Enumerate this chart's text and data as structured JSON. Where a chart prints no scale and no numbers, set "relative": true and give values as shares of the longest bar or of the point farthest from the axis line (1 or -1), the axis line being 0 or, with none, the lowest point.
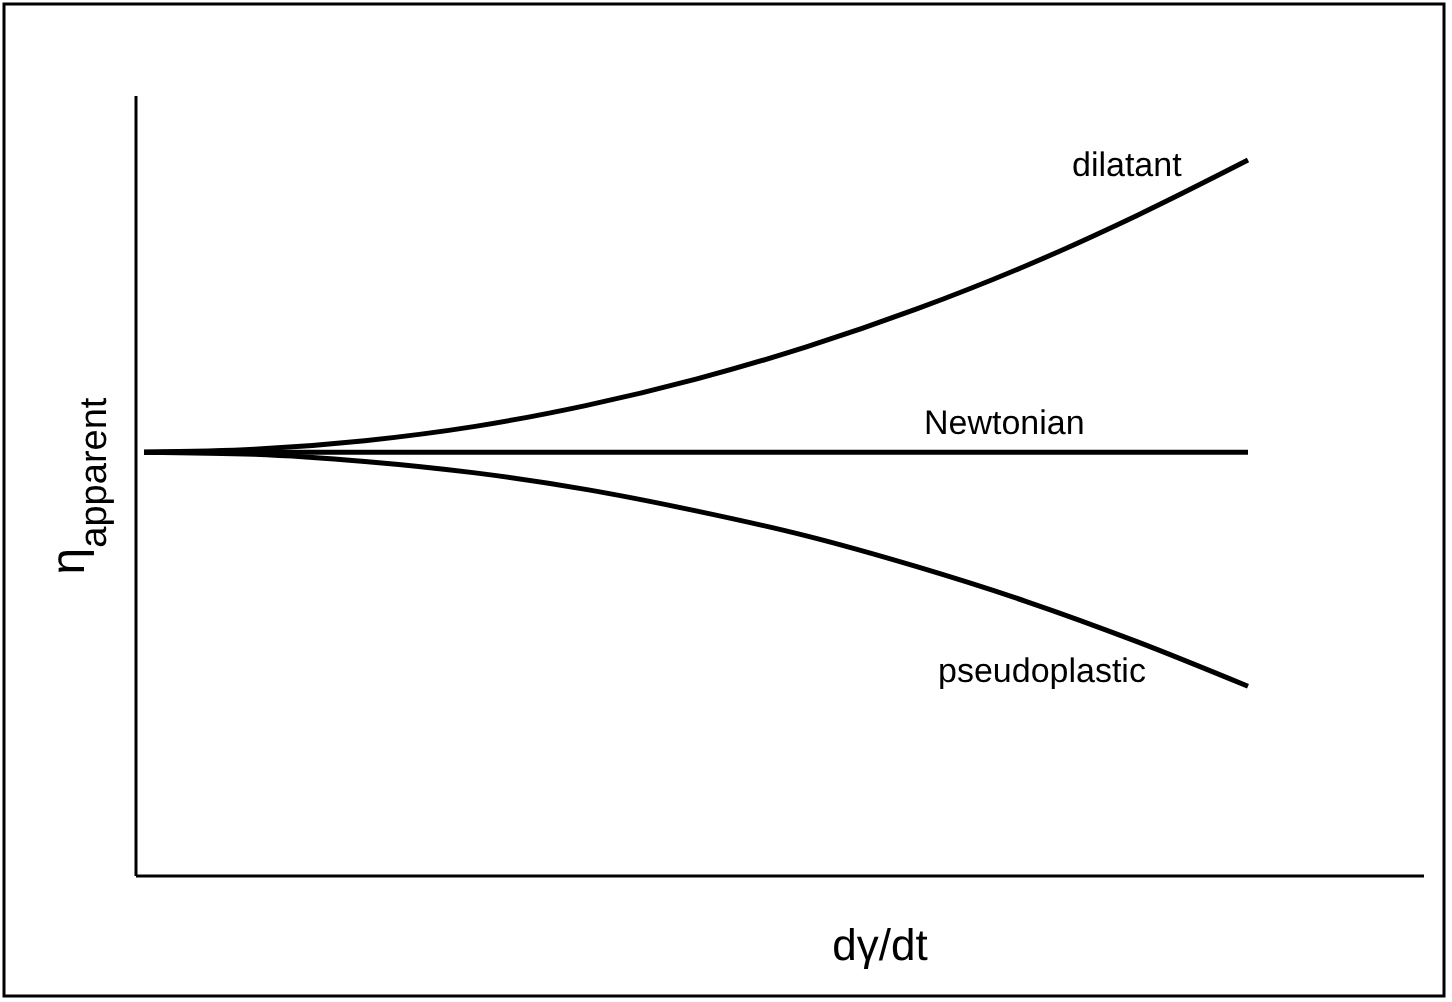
{
  "chart_data": {
    "type": "line",
    "relative": true,
    "xlabel": "dγ/dt",
    "ylabel": "η$_{apparent}$",
    "categories": [
      null,
      null,
      null,
      null,
      null,
      null,
      null,
      null,
      null,
      null,
      null
    ],
    "series": [
      {
        "name": "dilatant",
        "color": "#000000",
        "values": [
          0.592,
          0.596,
          0.608,
          0.628,
          0.657,
          0.694,
          0.739,
          0.792,
          0.853,
          0.923,
          1
        ]
      },
      {
        "name": "Newtonian",
        "color": "#000000",
        "values": [
          0.592,
          0.592,
          0.592,
          0.592,
          0.592,
          0.592,
          0.592,
          0.592,
          0.592,
          0.592,
          0.592
        ]
      },
      {
        "name": "pseudoplastic",
        "color": "#000000",
        "values": [
          0.592,
          0.589,
          0.579,
          0.563,
          0.54,
          0.51,
          0.475,
          0.432,
          0.383,
          0.327,
          0.265
        ]
      }
    ],
    "legend": false,
    "marker": "none",
    "line_style": "solid"
  }
}
